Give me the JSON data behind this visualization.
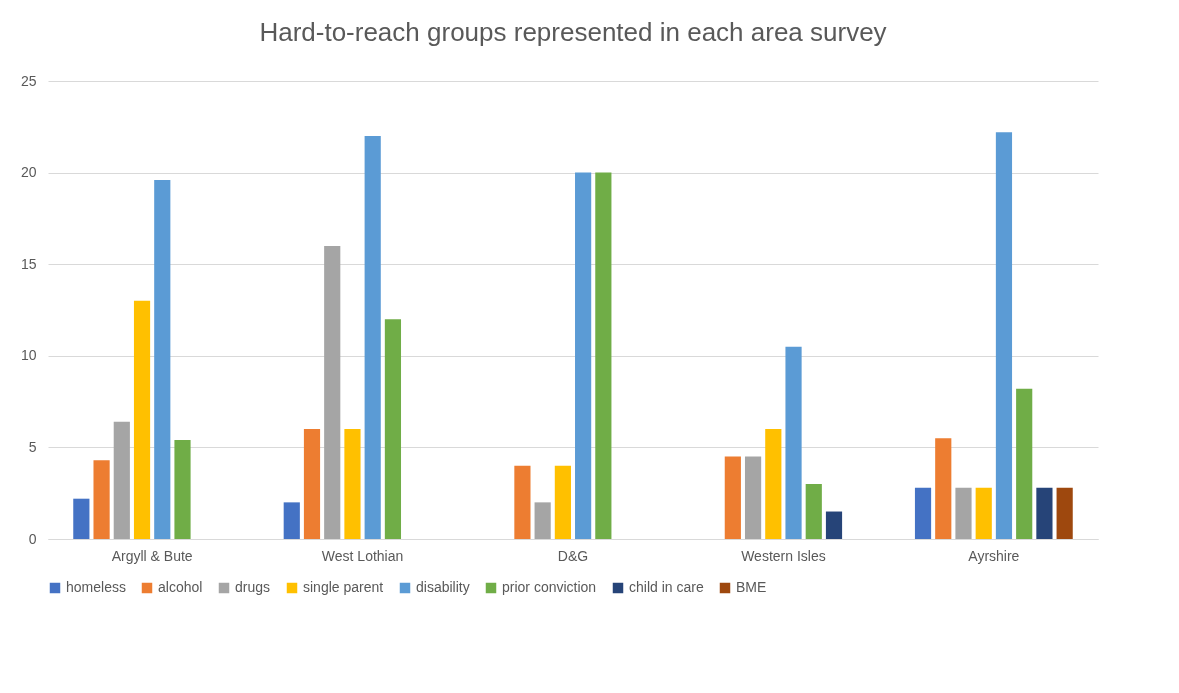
{
  "chart_data": {
    "type": "bar",
    "title": "Hard-to-reach groups represented in each area survey",
    "categories": [
      "Argyll & Bute",
      "West Lothian",
      "D&G",
      "Western Isles",
      "Ayrshire"
    ],
    "series": [
      {
        "name": "homeless",
        "color": "#4472c4",
        "values": [
          2.2,
          2.0,
          null,
          null,
          2.8
        ]
      },
      {
        "name": "alcohol",
        "color": "#ed7d31",
        "values": [
          4.3,
          6.0,
          4.0,
          4.5,
          5.5
        ]
      },
      {
        "name": "drugs",
        "color": "#a5a5a5",
        "values": [
          6.4,
          16.0,
          2.0,
          4.5,
          2.8
        ]
      },
      {
        "name": "single parent",
        "color": "#ffc000",
        "values": [
          13.0,
          6.0,
          4.0,
          6.0,
          2.8
        ]
      },
      {
        "name": "disability",
        "color": "#5b9bd5",
        "values": [
          19.6,
          22.0,
          20.0,
          10.5,
          22.2
        ]
      },
      {
        "name": "prior conviction",
        "color": "#70ad47",
        "values": [
          5.4,
          12.0,
          20.0,
          3.0,
          8.2
        ]
      },
      {
        "name": "child in care",
        "color": "#264478",
        "values": [
          null,
          null,
          null,
          1.5,
          2.8
        ]
      },
      {
        "name": "BME",
        "color": "#9e480e",
        "values": [
          null,
          null,
          null,
          null,
          2.8
        ]
      }
    ],
    "ylim": [
      0,
      25
    ],
    "yticks": [
      0,
      5,
      10,
      15,
      20,
      25
    ],
    "grid": "y",
    "legend": "bottom"
  }
}
